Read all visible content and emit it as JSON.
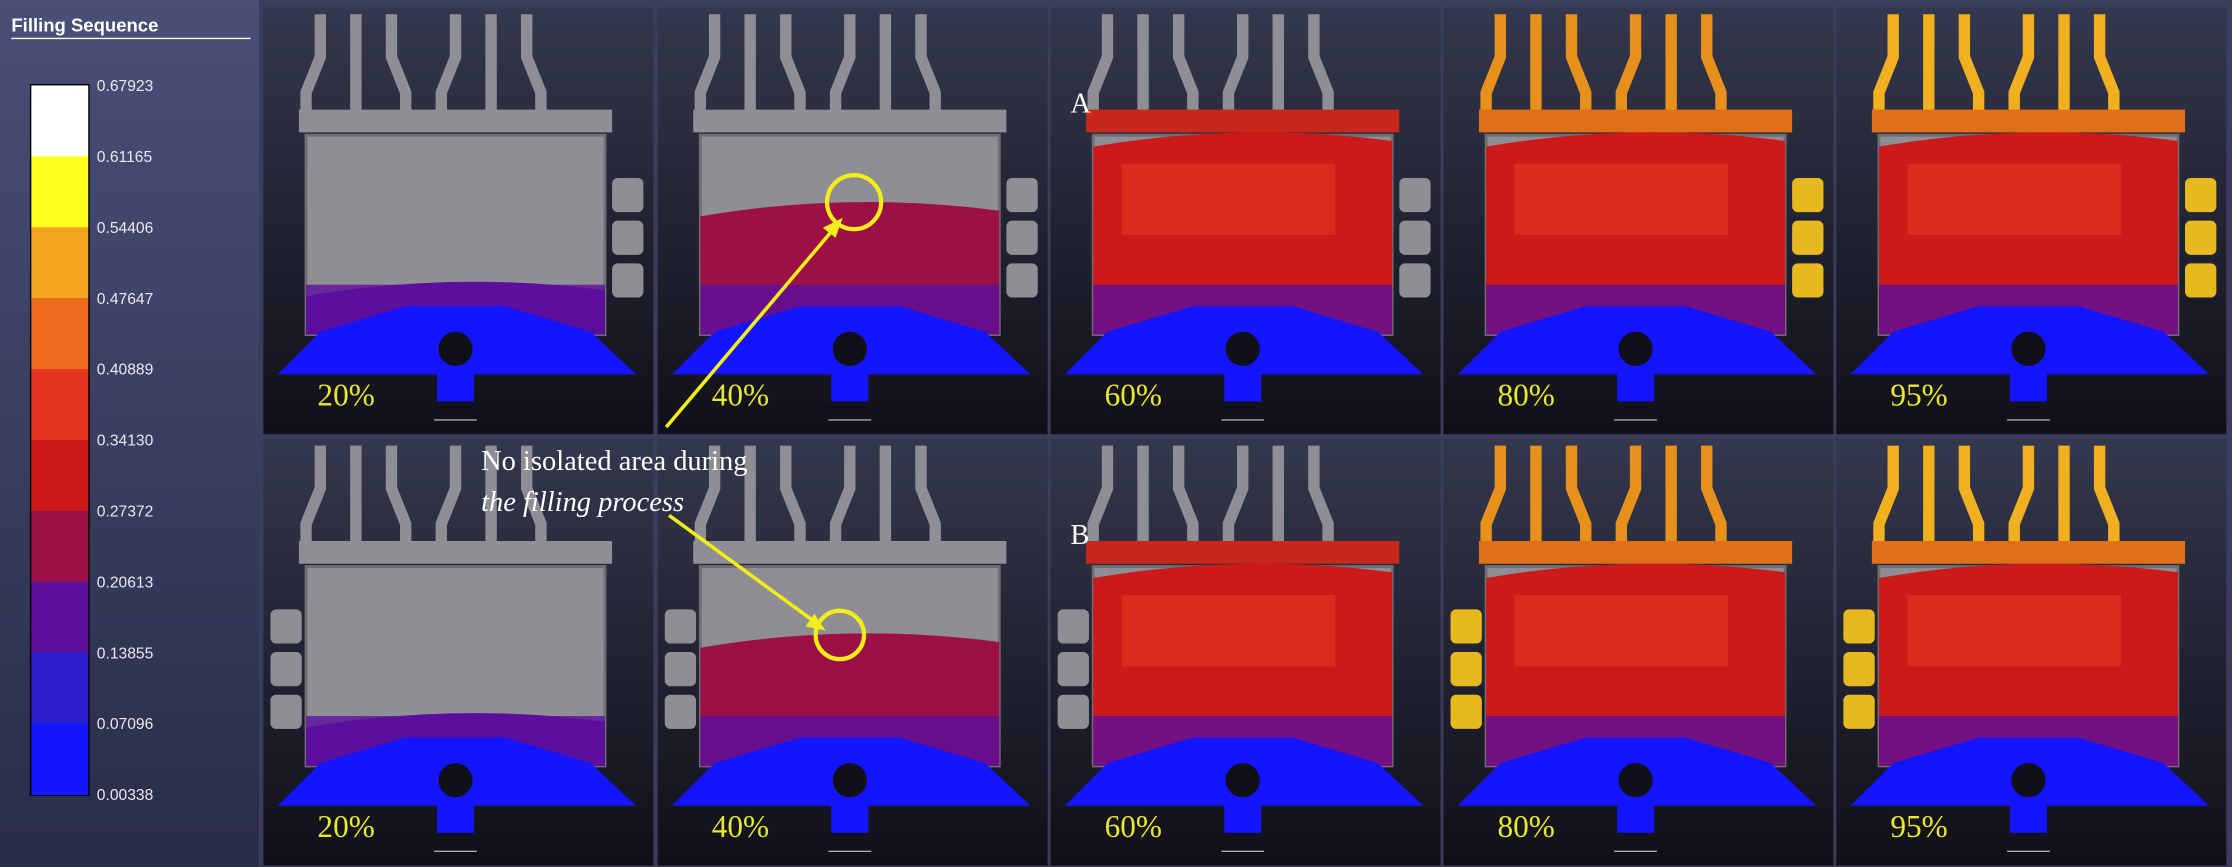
{
  "legend": {
    "title": "Filling Sequence",
    "ticks": [
      "0.67923",
      "0.61165",
      "0.54406",
      "0.47647",
      "0.40889",
      "0.34130",
      "0.27372",
      "0.20613",
      "0.13855",
      "0.07096",
      "0.00338"
    ],
    "colors": [
      "#ffffff",
      "#ffff1e",
      "#f2a51f",
      "#ee6a1c",
      "#e5321c",
      "#cc1a1a",
      "#9c1045",
      "#5c0f9c",
      "#2c1fd0",
      "#1414ff"
    ]
  },
  "rows": [
    {
      "label": "A",
      "frames": [
        "20%",
        "40%",
        "60%",
        "80%",
        "95%"
      ]
    },
    {
      "label": "B",
      "frames": [
        "20%",
        "40%",
        "60%",
        "80%",
        "95%"
      ]
    }
  ],
  "annotation": {
    "lines": [
      "No isolated area during",
      "the filling  process"
    ]
  }
}
